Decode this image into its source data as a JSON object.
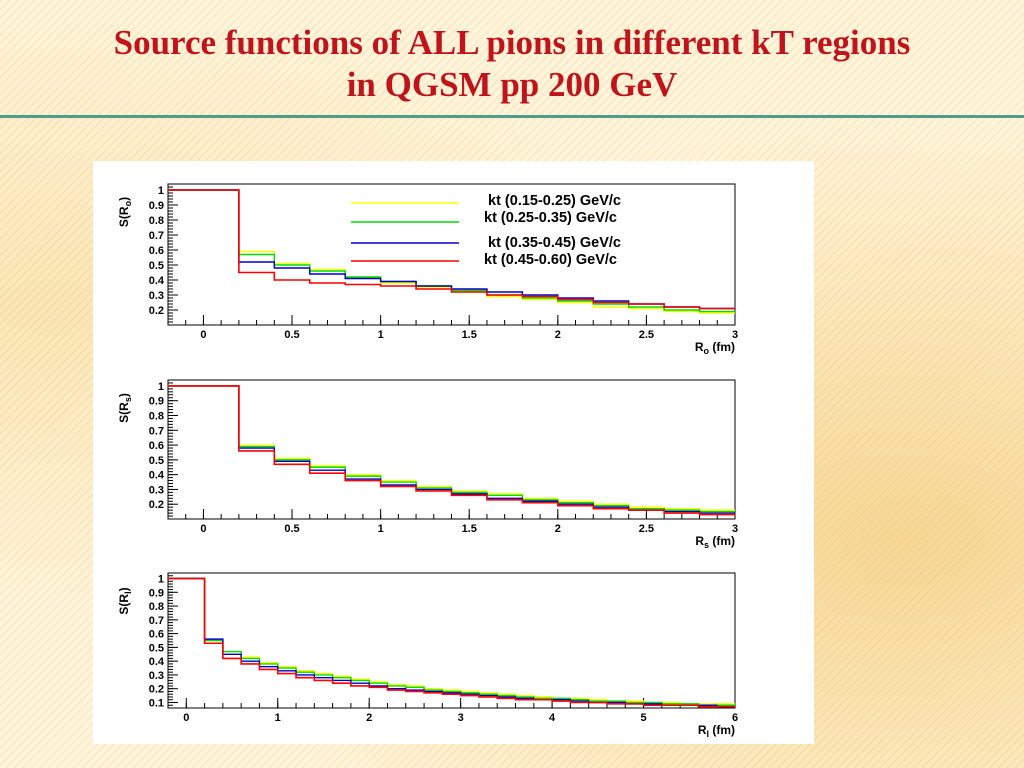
{
  "slide": {
    "title_line1": "Source functions of  ALL pions  in different kT regions",
    "title_line2": "in QGSM pp 200 GeV",
    "accent_color": "#c0141d",
    "rule_color": "#4f9c8c"
  },
  "chart_data": [
    {
      "type": "line",
      "step": true,
      "title": "",
      "xlabel": "R",
      "xlabel_sub": "o",
      "xlabel_unit": " (fm)",
      "ylabel": "S(R",
      "ylabel_sub": "o",
      "ylabel_close": ")",
      "xlim": [
        -0.2,
        3
      ],
      "ylim": [
        0.1,
        1.04
      ],
      "x_ticks": [
        0,
        0.5,
        1,
        1.5,
        2,
        2.5,
        3
      ],
      "x_tick_labels": [
        "0",
        "0.5",
        "1",
        "1.5",
        "2",
        "2.5",
        "3"
      ],
      "y_ticks": [
        0.2,
        0.3,
        0.4,
        0.5,
        0.6,
        0.7,
        0.8,
        0.9,
        1
      ],
      "y_tick_labels": [
        "0.2",
        "0.3",
        "0.4",
        "0.5",
        "0.6",
        "0.7",
        "0.8",
        "0.9",
        "1"
      ],
      "legend": {
        "placement": "top-right",
        "entries": [
          {
            "label": "kt (0.15-0.25) GeV/c",
            "color": "#ffff00"
          },
          {
            "label": "kt (0.25-0.35) GeV/c",
            "color": "#00dd00"
          },
          {
            "label": "kt (0.35-0.45) GeV/c",
            "color": "#0000cc"
          },
          {
            "label": "kt (0.45-0.60) GeV/c",
            "color": "#ff0000"
          }
        ]
      },
      "bin_edges": [
        -0.2,
        0.2,
        0.4,
        0.6,
        0.8,
        1.0,
        1.2,
        1.4,
        1.6,
        1.8,
        2.0,
        2.2,
        2.4,
        2.6,
        2.8,
        3.0
      ],
      "series": [
        {
          "color": "#ffff00",
          "values": [
            1.0,
            0.59,
            0.51,
            0.47,
            0.42,
            0.38,
            0.35,
            0.32,
            0.29,
            0.27,
            0.25,
            0.22,
            0.21,
            0.19,
            0.18
          ]
        },
        {
          "color": "#00dd00",
          "values": [
            1.0,
            0.57,
            0.5,
            0.46,
            0.42,
            0.39,
            0.36,
            0.33,
            0.3,
            0.28,
            0.26,
            0.24,
            0.22,
            0.2,
            0.19
          ]
        },
        {
          "color": "#0000cc",
          "values": [
            1.0,
            0.52,
            0.48,
            0.44,
            0.41,
            0.39,
            0.36,
            0.34,
            0.32,
            0.3,
            0.28,
            0.26,
            0.24,
            0.22,
            0.21
          ]
        },
        {
          "color": "#ff0000",
          "values": [
            1.0,
            0.45,
            0.4,
            0.38,
            0.37,
            0.36,
            0.34,
            0.32,
            0.3,
            0.29,
            0.27,
            0.25,
            0.24,
            0.22,
            0.21
          ]
        }
      ]
    },
    {
      "type": "line",
      "step": true,
      "title": "",
      "xlabel": "R",
      "xlabel_sub": "s",
      "xlabel_unit": " (fm)",
      "ylabel": "S(R",
      "ylabel_sub": "s",
      "ylabel_close": ")",
      "xlim": [
        -0.2,
        3
      ],
      "ylim": [
        0.1,
        1.04
      ],
      "x_ticks": [
        0,
        0.5,
        1,
        1.5,
        2,
        2.5,
        3
      ],
      "x_tick_labels": [
        "0",
        "0.5",
        "1",
        "1.5",
        "2",
        "2.5",
        "3"
      ],
      "y_ticks": [
        0.2,
        0.3,
        0.4,
        0.5,
        0.6,
        0.7,
        0.8,
        0.9,
        1
      ],
      "y_tick_labels": [
        "0.2",
        "0.3",
        "0.4",
        "0.5",
        "0.6",
        "0.7",
        "0.8",
        "0.9",
        "1"
      ],
      "bin_edges": [
        -0.2,
        0.2,
        0.4,
        0.6,
        0.8,
        1.0,
        1.2,
        1.4,
        1.6,
        1.8,
        2.0,
        2.2,
        2.4,
        2.6,
        2.8,
        3.0
      ],
      "series": [
        {
          "color": "#ffff00",
          "values": [
            1.0,
            0.6,
            0.51,
            0.46,
            0.4,
            0.36,
            0.32,
            0.29,
            0.27,
            0.24,
            0.22,
            0.2,
            0.18,
            0.17,
            0.16
          ]
        },
        {
          "color": "#00dd00",
          "values": [
            1.0,
            0.59,
            0.5,
            0.45,
            0.39,
            0.35,
            0.31,
            0.28,
            0.26,
            0.23,
            0.21,
            0.19,
            0.17,
            0.16,
            0.15
          ]
        },
        {
          "color": "#0000cc",
          "values": [
            1.0,
            0.58,
            0.49,
            0.43,
            0.37,
            0.33,
            0.3,
            0.27,
            0.24,
            0.22,
            0.2,
            0.18,
            0.16,
            0.15,
            0.14
          ]
        },
        {
          "color": "#ff0000",
          "values": [
            1.0,
            0.56,
            0.47,
            0.41,
            0.36,
            0.32,
            0.29,
            0.26,
            0.23,
            0.21,
            0.19,
            0.17,
            0.16,
            0.14,
            0.13
          ]
        }
      ]
    },
    {
      "type": "line",
      "step": true,
      "title": "",
      "xlabel": "R",
      "xlabel_sub": "l",
      "xlabel_unit": " (fm)",
      "ylabel": "S(R",
      "ylabel_sub": "l",
      "ylabel_close": ")",
      "xlim": [
        -0.2,
        6
      ],
      "ylim": [
        0.06,
        1.04
      ],
      "x_ticks": [
        0,
        1,
        2,
        3,
        4,
        5,
        6
      ],
      "x_tick_labels": [
        "0",
        "1",
        "2",
        "3",
        "4",
        "5",
        "6"
      ],
      "y_ticks": [
        0.1,
        0.2,
        0.3,
        0.4,
        0.5,
        0.6,
        0.7,
        0.8,
        0.9,
        1
      ],
      "y_tick_labels": [
        "0.1",
        "0.2",
        "0.3",
        "0.4",
        "0.5",
        "0.6",
        "0.7",
        "0.8",
        "0.9",
        "1"
      ],
      "bin_edges": [
        -0.2,
        0.2,
        0.4,
        0.6,
        0.8,
        1.0,
        1.2,
        1.4,
        1.6,
        1.8,
        2.0,
        2.2,
        2.4,
        2.6,
        2.8,
        3.0,
        3.2,
        3.4,
        3.6,
        3.8,
        4.0,
        4.2,
        4.4,
        4.6,
        4.8,
        5.0,
        5.2,
        5.4,
        5.6,
        5.8,
        6.0
      ],
      "series": [
        {
          "color": "#ffff00",
          "values": [
            1.0,
            0.55,
            0.47,
            0.43,
            0.39,
            0.36,
            0.33,
            0.31,
            0.29,
            0.27,
            0.25,
            0.23,
            0.22,
            0.2,
            0.19,
            0.18,
            0.17,
            0.16,
            0.15,
            0.14,
            0.13,
            0.13,
            0.12,
            0.11,
            0.11,
            0.1,
            0.1,
            0.09,
            0.09,
            0.09
          ]
        },
        {
          "color": "#00dd00",
          "values": [
            1.0,
            0.55,
            0.47,
            0.42,
            0.38,
            0.35,
            0.32,
            0.3,
            0.28,
            0.26,
            0.24,
            0.22,
            0.21,
            0.19,
            0.18,
            0.17,
            0.16,
            0.15,
            0.14,
            0.13,
            0.13,
            0.12,
            0.11,
            0.11,
            0.1,
            0.1,
            0.09,
            0.09,
            0.08,
            0.08
          ]
        },
        {
          "color": "#0000cc",
          "values": [
            1.0,
            0.56,
            0.45,
            0.4,
            0.36,
            0.33,
            0.3,
            0.28,
            0.26,
            0.24,
            0.22,
            0.2,
            0.19,
            0.18,
            0.17,
            0.16,
            0.15,
            0.14,
            0.13,
            0.12,
            0.12,
            0.11,
            0.1,
            0.1,
            0.09,
            0.09,
            0.08,
            0.08,
            0.08,
            0.07
          ]
        },
        {
          "color": "#ff0000",
          "values": [
            1.0,
            0.53,
            0.42,
            0.38,
            0.34,
            0.31,
            0.28,
            0.26,
            0.24,
            0.22,
            0.21,
            0.19,
            0.18,
            0.17,
            0.16,
            0.15,
            0.14,
            0.13,
            0.12,
            0.12,
            0.11,
            0.1,
            0.1,
            0.09,
            0.09,
            0.08,
            0.08,
            0.08,
            0.07,
            0.07
          ]
        }
      ]
    }
  ]
}
